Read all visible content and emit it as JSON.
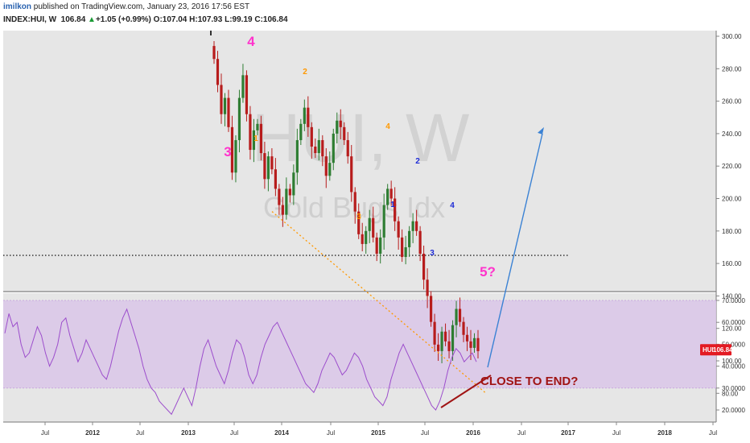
{
  "header": {
    "author": "imilkon",
    "published_text": "published on TradingView.com, January 23, 2016 17:56 EST",
    "symbol": "INDEX:HUI, W",
    "last": "106.84",
    "change": "+1.05 (+0.99%)",
    "o_label": "O:",
    "open": "107.04",
    "h_label": "H:",
    "high": "107.93",
    "l_label": "L:",
    "low": "99.19",
    "c_label": "C:",
    "close": "106.84"
  },
  "watermark": {
    "line1": "HUI, W",
    "line2": "Gold Bugs Idx"
  },
  "price_tag": {
    "symbol": "HUI",
    "value": "106.84"
  },
  "colors": {
    "up_candle": "#2e7d32",
    "down_candle": "#b71c1c",
    "bg": "#e6e6e6",
    "rsi_line": "#9c4dcc",
    "rsi_band": "#d9c6e8",
    "accent": "#ff33cc",
    "orange_wave": "#ff9800",
    "blue_wave": "#1d2bd6",
    "projection": "#3b82d4",
    "annotation": "#a01414",
    "price_tag": "#e31b23"
  },
  "annotations": {
    "wave4_big": "4",
    "wave3_big": "3",
    "wave5_big": "5?",
    "orange_1": "1",
    "orange_2": "2",
    "orange_3": "3",
    "orange_4": "4",
    "blue_1": "1",
    "blue_2": "2",
    "blue_3": "3",
    "blue_4": "4",
    "close_to_end": "CLOSE TO END?"
  },
  "chart_data": [
    {
      "type": "candlestick",
      "title": "INDEX:HUI, W",
      "ylim": [
        70,
        305
      ],
      "y_ticks": [
        "300.00",
        "280.00",
        "260.00",
        "240.00",
        "220.00",
        "200.00",
        "180.00",
        "160.00",
        "140.00",
        "120.00",
        "100.00",
        "80.00"
      ],
      "weekly_closes_estimate": [
        286,
        270,
        252,
        262,
        244,
        216,
        236,
        262,
        276,
        252,
        230,
        242,
        246,
        228,
        212,
        226,
        218,
        206,
        196,
        190,
        206,
        202,
        216,
        236,
        246,
        256,
        244,
        232,
        228,
        236,
        226,
        214,
        222,
        240,
        248,
        244,
        236,
        226,
        204,
        192,
        178,
        172,
        180,
        188,
        176,
        166,
        176,
        196,
        206,
        200,
        186,
        176,
        164,
        170,
        180,
        186,
        180,
        166,
        150,
        140,
        124,
        110,
        106,
        118,
        112,
        106,
        122,
        132,
        124,
        116,
        112,
        108,
        114,
        106
      ],
      "horizontal_level": 165,
      "wave_target": 84,
      "projection_target": 243
    },
    {
      "type": "line",
      "title": "RSI",
      "ylim": [
        15,
        72
      ],
      "y_ticks": [
        "70.0000",
        "60.0000",
        "50.0000",
        "40.0000",
        "30.0000",
        "20.0000"
      ],
      "band": [
        30,
        70
      ],
      "values_estimate": [
        55,
        64,
        58,
        60,
        50,
        44,
        46,
        52,
        58,
        54,
        46,
        40,
        44,
        50,
        60,
        62,
        54,
        48,
        42,
        46,
        52,
        48,
        44,
        40,
        36,
        34,
        40,
        48,
        56,
        62,
        66,
        60,
        54,
        48,
        40,
        34,
        30,
        28,
        24,
        22,
        20,
        18,
        22,
        26,
        30,
        26,
        22,
        30,
        40,
        48,
        52,
        46,
        40,
        36,
        32,
        38,
        46,
        52,
        50,
        44,
        36,
        32,
        36,
        44,
        50,
        54,
        58,
        60,
        56,
        52,
        48,
        44,
        40,
        36,
        32,
        30,
        28,
        32,
        38,
        42,
        46,
        44,
        40,
        36,
        38,
        42,
        46,
        44,
        40,
        34,
        30,
        26,
        24,
        22,
        26,
        34,
        40,
        46,
        50,
        46,
        42,
        38,
        34,
        30,
        26,
        22,
        20,
        24,
        30,
        38,
        44,
        48,
        46,
        42,
        44,
        46,
        42
      ],
      "x_ticks": [
        "Jul",
        "2012",
        "Jul",
        "2013",
        "Jul",
        "2014",
        "Jul",
        "2015",
        "Jul",
        "2016",
        "Jul",
        "2017",
        "Jul",
        "2018",
        "Jul"
      ]
    }
  ]
}
